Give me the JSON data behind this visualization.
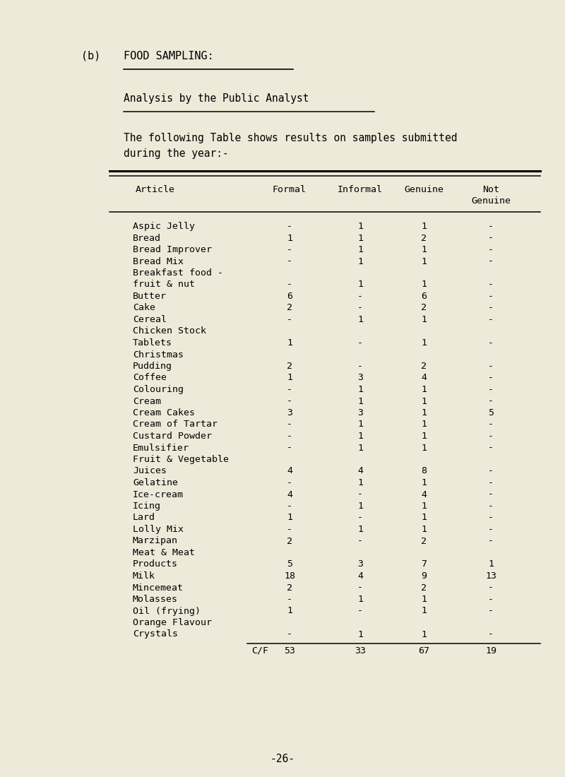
{
  "background_color": "#edeada",
  "title_b_prefix": "(b)  ",
  "title_b_underlined": "FOOD SAMPLING:",
  "subtitle": "Analysis by the Public Analyst",
  "intro_line1": "The following Table shows results on samples submitted",
  "intro_line2": "during the year:-",
  "col_headers": [
    "Article",
    "Formal",
    "Informal",
    "Genuine",
    "Not",
    "Genuine"
  ],
  "rows": [
    [
      "Aspic Jelly",
      "-",
      "1",
      "1",
      "-"
    ],
    [
      "Bread",
      "1",
      "1",
      "2",
      "-"
    ],
    [
      "Bread Improver",
      "-",
      "1",
      "1",
      "-"
    ],
    [
      "Bread Mix",
      "-",
      "1",
      "1",
      "-"
    ],
    [
      "Breakfast food -",
      "",
      "",
      "",
      ""
    ],
    [
      "fruit & nut",
      "-",
      "1",
      "1",
      "-"
    ],
    [
      "Butter",
      "6",
      "-",
      "6",
      "-"
    ],
    [
      "Cake",
      "2",
      "-",
      "2",
      "-"
    ],
    [
      "Cereal",
      "-",
      "1",
      "1",
      "-"
    ],
    [
      "Chicken Stock",
      "",
      "",
      "",
      ""
    ],
    [
      "Tablets",
      "1",
      "-",
      "1",
      "-"
    ],
    [
      "Christmas",
      "",
      "",
      "",
      ""
    ],
    [
      "Pudding",
      "2",
      "-",
      "2",
      "-"
    ],
    [
      "Coffee",
      "1",
      "3",
      "4",
      "-"
    ],
    [
      "Colouring",
      "-",
      "1",
      "1",
      "-"
    ],
    [
      "Cream",
      "-",
      "1",
      "1",
      "-"
    ],
    [
      "Cream Cakes",
      "3",
      "3",
      "1",
      "5"
    ],
    [
      "Cream of Tartar",
      "-",
      "1",
      "1",
      "-"
    ],
    [
      "Custard Powder",
      "-",
      "1",
      "1",
      "-"
    ],
    [
      "Emulsifier",
      "-",
      "1",
      "1",
      "-"
    ],
    [
      "Fruit & Vegetable",
      "",
      "",
      "",
      ""
    ],
    [
      "Juices",
      "4",
      "4",
      "8",
      "-"
    ],
    [
      "Gelatine",
      "-",
      "1",
      "1",
      "-"
    ],
    [
      "Ice-cream",
      "4",
      "-",
      "4",
      "-"
    ],
    [
      "Icing",
      "-",
      "1",
      "1",
      "-"
    ],
    [
      "Lard",
      "1",
      "-",
      "1",
      "-"
    ],
    [
      "Lolly Mix",
      "-",
      "1",
      "1",
      "-"
    ],
    [
      "Marzipan",
      "2",
      "-",
      "2",
      "-"
    ],
    [
      "Meat & Meat",
      "",
      "",
      "",
      ""
    ],
    [
      "Products",
      "5",
      "3",
      "7",
      "1"
    ],
    [
      "Milk",
      "18",
      "4",
      "9",
      "13"
    ],
    [
      "Mincemeat",
      "2",
      "-",
      "2",
      "-"
    ],
    [
      "Molasses",
      "-",
      "1",
      "1",
      "-"
    ],
    [
      "Oil (frying)",
      "1",
      "-",
      "1",
      "-"
    ],
    [
      "Orange Flavour",
      "",
      "",
      "",
      ""
    ],
    [
      "Crystals",
      "-",
      "1",
      "1",
      "-"
    ]
  ],
  "totals_label": "C/F",
  "totals": [
    "53",
    "33",
    "67",
    "19"
  ],
  "page_number": "-26-",
  "font_size": 9.5,
  "lw_heavy": 2.2,
  "lw_light": 1.1
}
